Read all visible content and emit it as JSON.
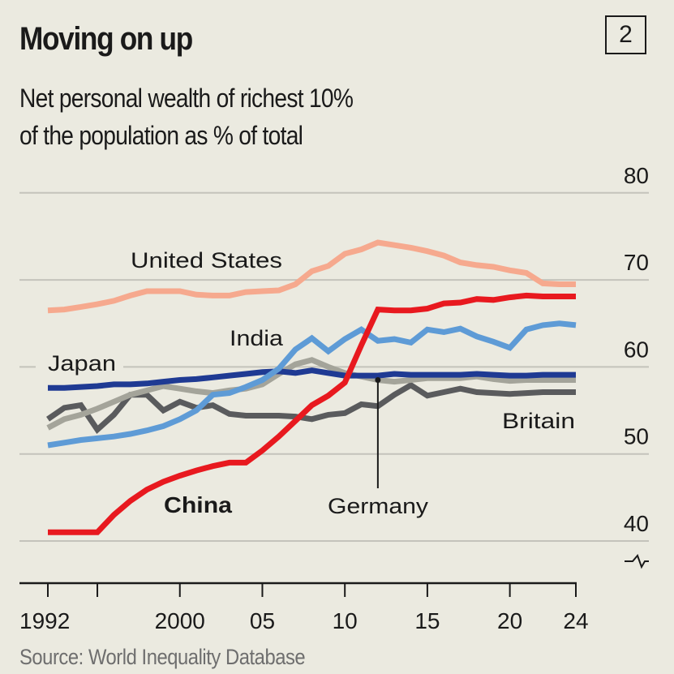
{
  "header": {
    "title": "Moving on up",
    "badge": "2",
    "subtitle_line1": "Net personal wealth of richest 10%",
    "subtitle_line2": "of the population as % of total"
  },
  "footer": {
    "source": "Source: World Inequality Database"
  },
  "chart_data": {
    "type": "line",
    "title": "Moving on up",
    "subtitle": "Net personal wealth of richest 10% of the population as % of total",
    "xlabel": "",
    "ylabel": "% of total",
    "ylim": [
      38,
      80
    ],
    "y_ticks": [
      40,
      50,
      60,
      70,
      80
    ],
    "y_tick_labels": [
      "40",
      "50",
      "60",
      "70",
      "80"
    ],
    "y_axis_position": "right",
    "y_axis_break": true,
    "xlim": [
      1992,
      2024
    ],
    "x_ticks": [
      1992,
      1995,
      2000,
      2005,
      2010,
      2015,
      2020,
      2024
    ],
    "x_tick_labels": [
      "1992",
      "",
      "2000",
      "05",
      "10",
      "15",
      "20",
      "24"
    ],
    "grid": true,
    "legend": "direct labels",
    "x": [
      1992,
      1993,
      1994,
      1995,
      1996,
      1997,
      1998,
      1999,
      2000,
      2001,
      2002,
      2003,
      2004,
      2005,
      2006,
      2007,
      2008,
      2009,
      2010,
      2011,
      2012,
      2013,
      2014,
      2015,
      2016,
      2017,
      2018,
      2019,
      2020,
      2021,
      2022,
      2023,
      2024
    ],
    "series": [
      {
        "name": "Britain",
        "color": "#5a5b5d",
        "label_weight": "normal",
        "values": [
          54.0,
          55.3,
          55.6,
          52.8,
          54.5,
          56.8,
          56.8,
          55.0,
          56.0,
          55.3,
          55.6,
          54.6,
          54.4,
          54.4,
          54.4,
          54.3,
          54.0,
          54.5,
          54.7,
          55.7,
          55.5,
          56.8,
          57.9,
          56.7,
          57.1,
          57.5,
          57.1,
          57.0,
          56.9,
          57.0,
          57.1,
          57.1,
          57.1
        ]
      },
      {
        "name": "Germany",
        "color": "#a4a49a",
        "label_weight": "normal",
        "values": [
          53.0,
          54.0,
          54.5,
          55.2,
          56.0,
          56.8,
          57.3,
          57.8,
          57.5,
          57.2,
          57.0,
          57.3,
          57.5,
          58.0,
          59.2,
          60.3,
          60.8,
          60.0,
          59.3,
          58.9,
          58.5,
          58.3,
          58.5,
          58.7,
          58.7,
          58.7,
          58.9,
          58.6,
          58.4,
          58.5,
          58.5,
          58.5,
          58.5
        ]
      },
      {
        "name": "Japan",
        "color": "#1f3a93",
        "label_weight": "normal",
        "values": [
          57.6,
          57.6,
          57.7,
          57.8,
          58.0,
          58.0,
          58.1,
          58.3,
          58.5,
          58.6,
          58.8,
          59.0,
          59.2,
          59.4,
          59.5,
          59.3,
          59.6,
          59.3,
          59.0,
          59.0,
          59.0,
          59.2,
          59.1,
          59.1,
          59.1,
          59.1,
          59.2,
          59.1,
          59.0,
          59.0,
          59.1,
          59.1,
          59.1
        ]
      },
      {
        "name": "India",
        "color": "#5e9bd6",
        "label_weight": "normal",
        "values": [
          51.0,
          51.3,
          51.6,
          51.8,
          52.0,
          52.3,
          52.7,
          53.2,
          54.0,
          55.0,
          56.8,
          57.0,
          57.7,
          58.5,
          59.8,
          62.0,
          63.3,
          61.8,
          63.2,
          64.3,
          63.0,
          63.2,
          62.8,
          64.3,
          64.0,
          64.4,
          63.5,
          62.9,
          62.2,
          64.3,
          64.8,
          65.0,
          64.8
        ]
      },
      {
        "name": "United States",
        "color": "#f6a98e",
        "label_weight": "normal",
        "values": [
          66.5,
          66.6,
          66.9,
          67.2,
          67.6,
          68.2,
          68.7,
          68.7,
          68.7,
          68.3,
          68.2,
          68.2,
          68.6,
          68.7,
          68.8,
          69.5,
          71.0,
          71.6,
          73.0,
          73.5,
          74.3,
          74.0,
          73.7,
          73.3,
          72.8,
          72.0,
          71.7,
          71.5,
          71.1,
          70.8,
          69.6,
          69.5,
          69.5
        ]
      },
      {
        "name": "China",
        "color": "#e8191f",
        "label_weight": "bold",
        "values": [
          41.0,
          41.0,
          41.0,
          41.0,
          43.0,
          44.6,
          45.9,
          46.8,
          47.5,
          48.1,
          48.6,
          49.0,
          49.0,
          50.4,
          52.0,
          53.8,
          55.6,
          56.7,
          58.2,
          62.5,
          66.6,
          66.5,
          66.5,
          66.7,
          67.3,
          67.4,
          67.8,
          67.7,
          68.0,
          68.2,
          68.1,
          68.1,
          68.1
        ]
      }
    ],
    "annotations": [
      {
        "text": "United States",
        "series": "United States"
      },
      {
        "text": "India",
        "series": "India"
      },
      {
        "text": "Japan",
        "series": "Japan"
      },
      {
        "text": "Britain",
        "series": "Britain"
      },
      {
        "text": "China",
        "series": "China"
      },
      {
        "text": "Germany",
        "series": "Germany",
        "leader_line_year": 2012
      }
    ]
  }
}
